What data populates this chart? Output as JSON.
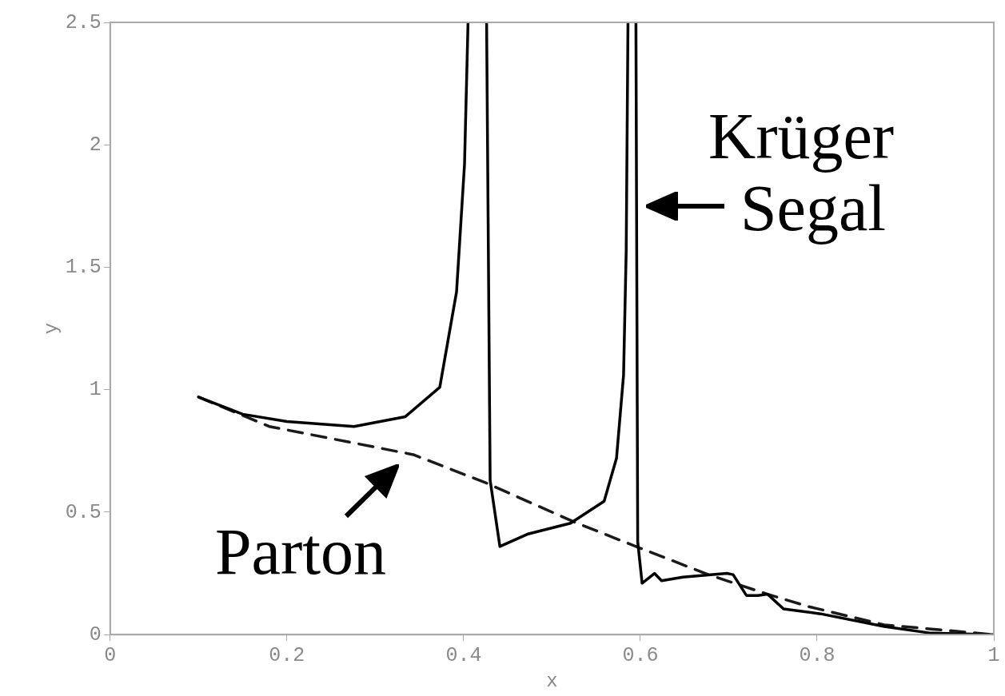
{
  "chart_data": {
    "type": "line",
    "xlabel": "x",
    "ylabel": "y",
    "xlim": [
      0,
      1
    ],
    "ylim": [
      0,
      2.5
    ],
    "xticks": [
      0,
      0.2,
      0.4,
      0.6,
      0.8,
      1
    ],
    "yticks": [
      0,
      0.5,
      1,
      1.5,
      2,
      2.5
    ],
    "grid": false,
    "legend": false,
    "marker": "none",
    "series": [
      {
        "color": "#000000",
        "line_style": "solid",
        "x": [
          0.1,
          0.15,
          0.2,
          0.276,
          0.334,
          0.373,
          0.392,
          0.401,
          0.405,
          0.415,
          0.426,
          0.43,
          0.441,
          0.472,
          0.521,
          0.559,
          0.573,
          0.581,
          0.584,
          0.586,
          0.59,
          0.595,
          0.597,
          0.602,
          0.616,
          0.624,
          0.648,
          0.698,
          0.705,
          0.72,
          0.733,
          0.744,
          0.762,
          0.804,
          0.876,
          0.929,
          1
        ],
        "values": [
          0.97,
          0.9,
          0.87,
          0.85,
          0.89,
          1.01,
          1.4,
          1.92,
          2.5,
          null,
          2.5,
          0.63,
          0.36,
          0.41,
          0.455,
          0.545,
          0.72,
          1.06,
          1.57,
          2.5,
          null,
          2.5,
          0.38,
          0.21,
          0.25,
          0.22,
          0.235,
          0.25,
          0.245,
          0.16,
          0.16,
          0.165,
          0.105,
          0.085,
          0.033,
          0.006,
          0
        ]
      },
      {
        "color": "#1a1a1a",
        "line_style": "dashed",
        "x": [
          0.1,
          0.18,
          0.343,
          0.425,
          0.525,
          0.595,
          0.677,
          0.744,
          0.79,
          0.876,
          1
        ],
        "values": [
          0.97,
          0.85,
          0.735,
          0.62,
          0.46,
          0.36,
          0.245,
          0.165,
          0.115,
          0.04,
          0
        ]
      }
    ],
    "annotations": [
      {
        "text": "Krüger Segal",
        "x": 0.6,
        "y": 1.75
      },
      {
        "text": "Parton",
        "x": 0.335,
        "y": 0.73
      }
    ]
  }
}
